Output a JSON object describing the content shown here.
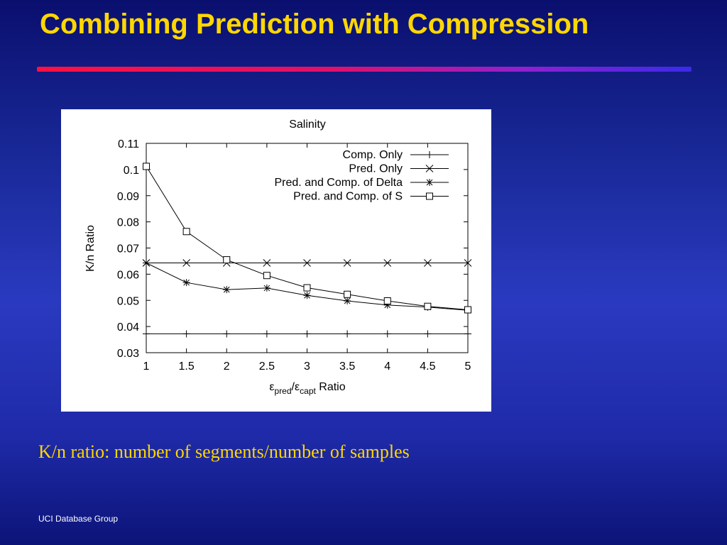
{
  "slide": {
    "title": "Combining Prediction with Compression",
    "caption": "K/n ratio: number of segments/number of samples",
    "footer": "UCI Database Group"
  },
  "colors": {
    "title": "#ffd700",
    "caption": "#ffd700",
    "background": "#1a2a9a"
  },
  "chart_data": {
    "type": "line",
    "title": "Salinity",
    "ylabel": "K/n Ratio",
    "xlabel_parts": {
      "base1": "ε",
      "sub1": "pred",
      "slash": "/",
      "base2": "ε",
      "sub2": "capt",
      "tail": " Ratio"
    },
    "xlim": [
      1,
      5
    ],
    "ylim": [
      0.03,
      0.11
    ],
    "x_ticks": [
      "1",
      "1.5",
      "2",
      "2.5",
      "3",
      "3.5",
      "4",
      "4.5",
      "5"
    ],
    "y_ticks": [
      "0.03",
      "0.04",
      "0.05",
      "0.06",
      "0.07",
      "0.08",
      "0.09",
      "0.1",
      "0.11"
    ],
    "legend_position": "top-right",
    "grid": false,
    "series": [
      {
        "name": "Comp. Only",
        "marker": "plus",
        "x": [
          1,
          1.5,
          2,
          2.5,
          3,
          3.5,
          4,
          4.5,
          5
        ],
        "values": [
          0.0372,
          0.0372,
          0.0372,
          0.0372,
          0.0372,
          0.0372,
          0.0372,
          0.0372,
          0.0372
        ]
      },
      {
        "name": "Pred. Only",
        "marker": "cross",
        "x": [
          1,
          1.5,
          2,
          2.5,
          3,
          3.5,
          4,
          4.5,
          5
        ],
        "values": [
          0.0643,
          0.0643,
          0.0643,
          0.0643,
          0.0643,
          0.0643,
          0.0643,
          0.0643,
          0.0643
        ]
      },
      {
        "name": "Pred. and Comp. of Delta",
        "marker": "star",
        "x": [
          1,
          1.5,
          2,
          2.5,
          3,
          3.5,
          4,
          4.5,
          5
        ],
        "values": [
          0.0643,
          0.0568,
          0.0541,
          0.0547,
          0.0519,
          0.0498,
          0.0482,
          0.0474,
          0.0462
        ]
      },
      {
        "name": "Pred. and Comp. of S",
        "marker": "square",
        "x": [
          1,
          1.5,
          2,
          2.5,
          3,
          3.5,
          4,
          4.5,
          5
        ],
        "values": [
          0.1012,
          0.0763,
          0.0655,
          0.0595,
          0.0548,
          0.0523,
          0.0498,
          0.0477,
          0.0464
        ]
      }
    ]
  }
}
